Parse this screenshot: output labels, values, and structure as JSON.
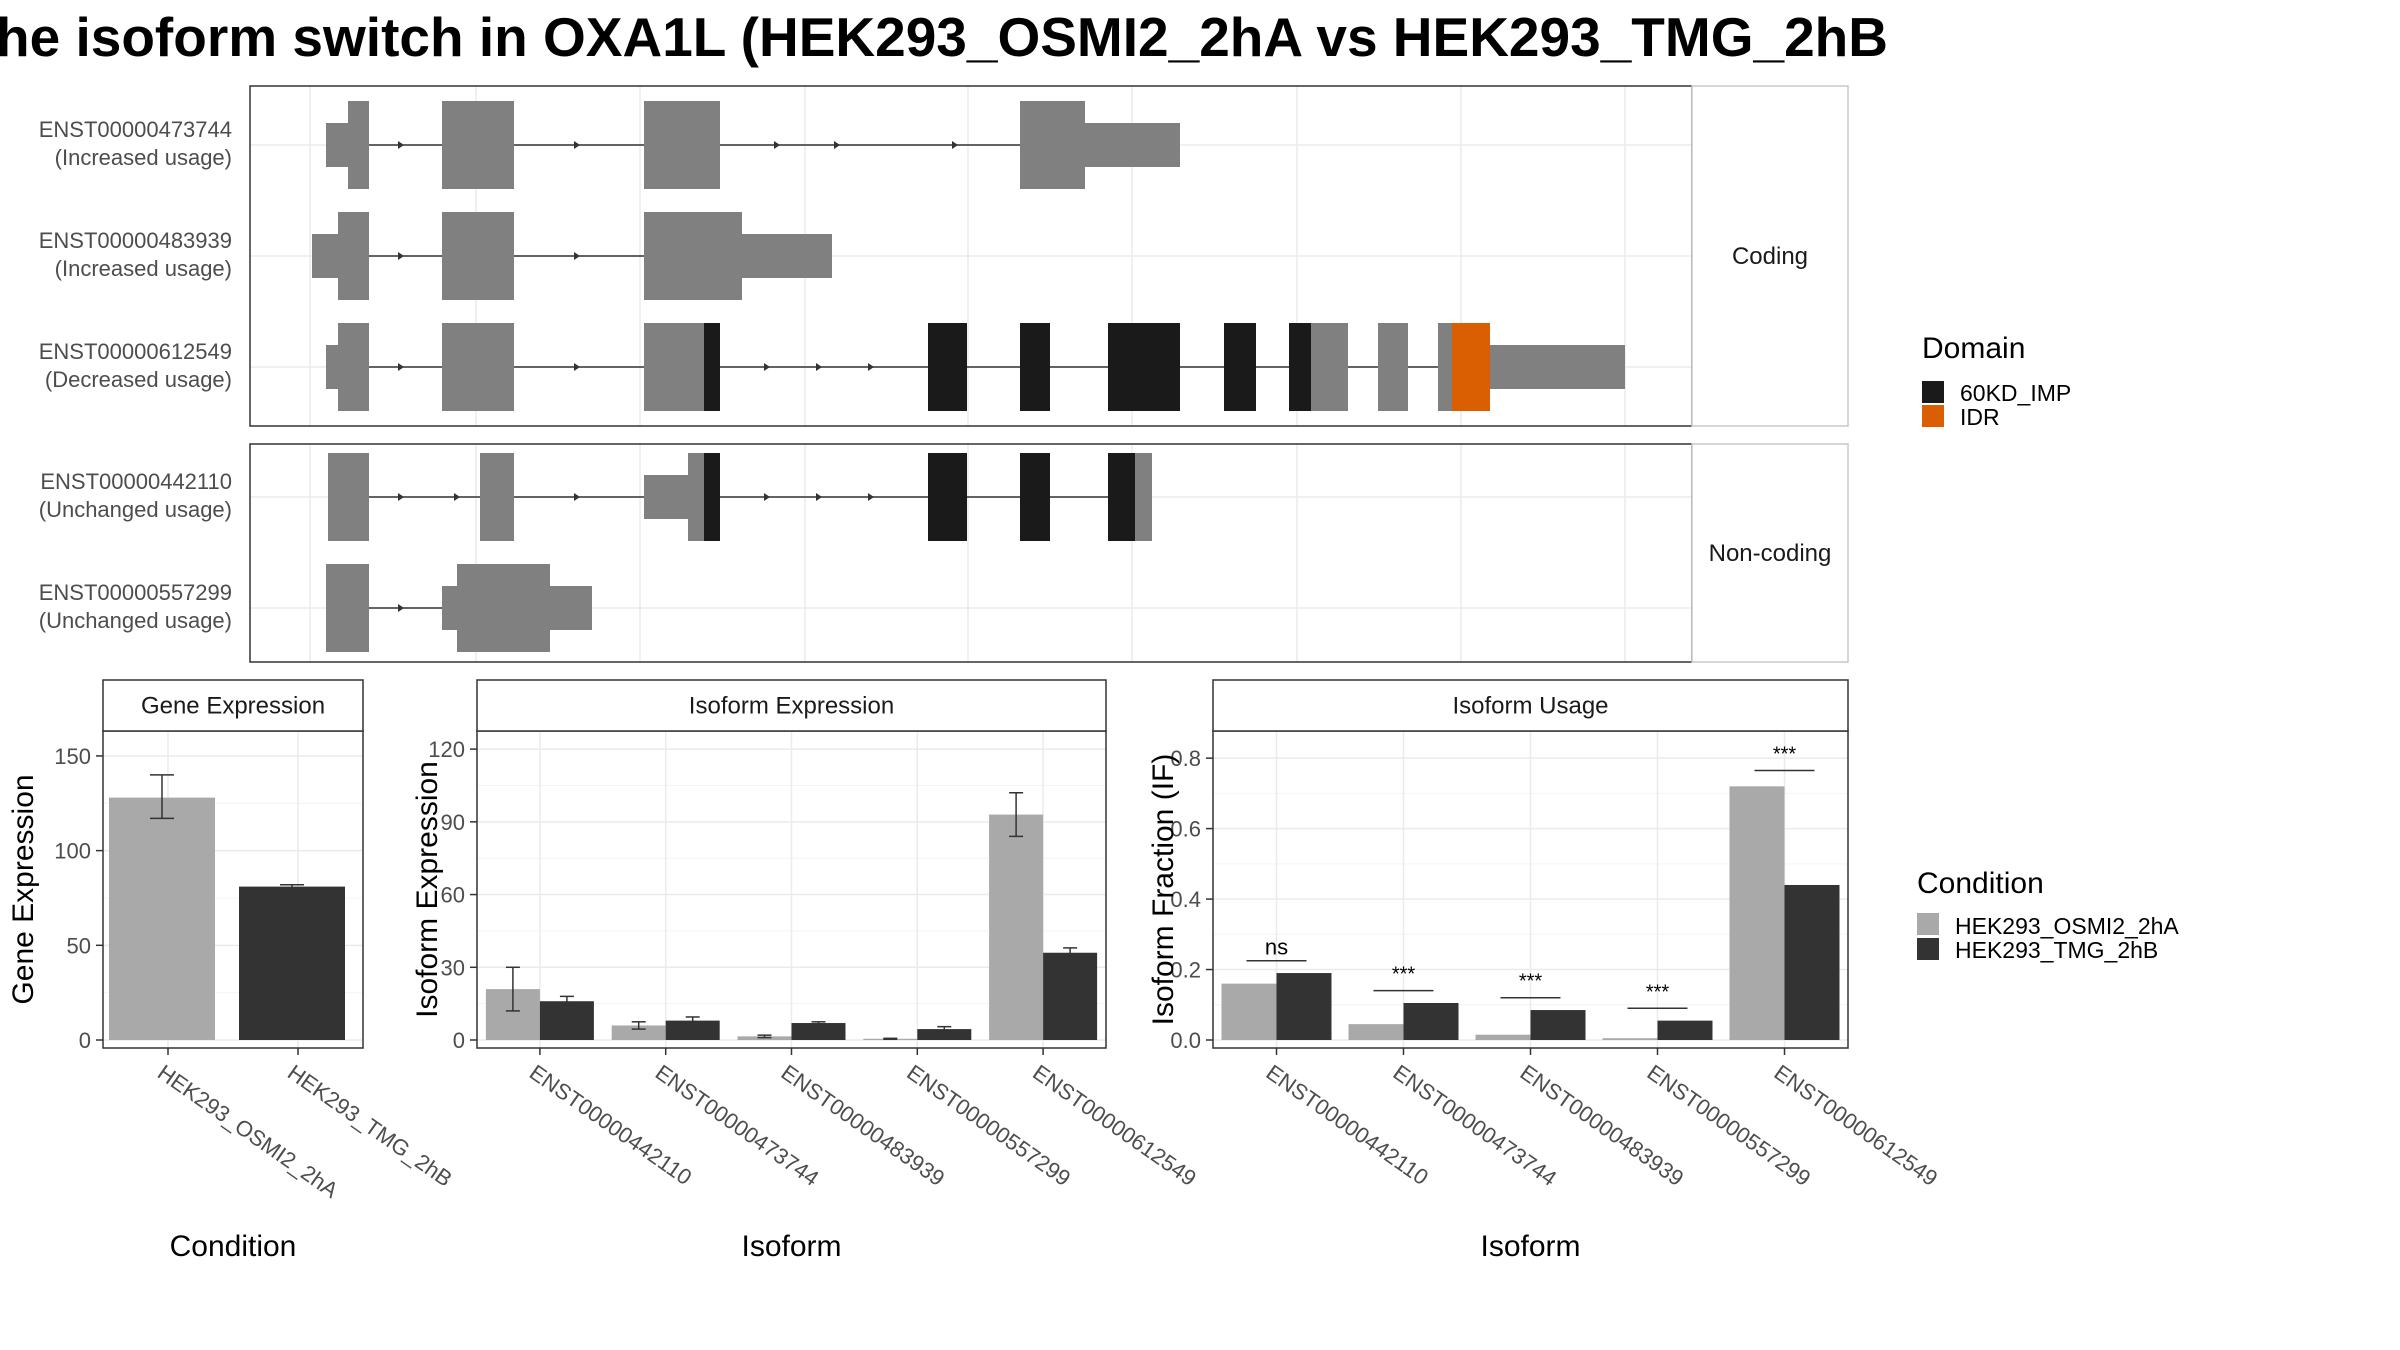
{
  "title": "he isoform switch in OXA1L (HEK293_OSMI2_2hA vs HEK293_TMG_2hB",
  "colors": {
    "exon": "#808080",
    "domain_60KD_IMP": "#1a1a1a",
    "domain_IDR": "#d95f02",
    "condition_A": "#a9a9a9",
    "condition_B": "#333333",
    "panel_border": "#333333",
    "strip_bg": "#ffffff",
    "grid": "#ebebeb"
  },
  "transcript_panel": {
    "groups": [
      {
        "label": "Coding",
        "transcripts": [
          {
            "id": "ENST00000473744",
            "usage": "(Increased usage)"
          },
          {
            "id": "ENST00000483939",
            "usage": "(Increased usage)"
          },
          {
            "id": "ENST00000612549",
            "usage": "(Decreased usage)"
          }
        ]
      },
      {
        "label": "Non-coding",
        "transcripts": [
          {
            "id": "ENST00000442110",
            "usage": "(Unchanged usage)"
          },
          {
            "id": "ENST00000557299",
            "usage": "(Unchanged usage)"
          }
        ]
      }
    ],
    "domain_legend": {
      "title": "Domain",
      "items": [
        {
          "name": "60KD_IMP",
          "color": "#1a1a1a"
        },
        {
          "name": "IDR",
          "color": "#d95f02"
        }
      ]
    }
  },
  "condition_legend": {
    "title": "Condition",
    "items": [
      {
        "name": "HEK293_OSMI2_2hA",
        "color": "#a9a9a9"
      },
      {
        "name": "HEK293_TMG_2hB",
        "color": "#333333"
      }
    ]
  },
  "chart_data": [
    {
      "type": "bar",
      "title": "Gene Expression",
      "xlabel": "Condition",
      "ylabel": "Gene Expression",
      "categories": [
        "HEK293_OSMI2_2hA",
        "HEK293_TMG_2hB"
      ],
      "values": [
        128,
        81
      ],
      "error_low": [
        117,
        80
      ],
      "error_high": [
        140,
        82
      ],
      "ylim": [
        0,
        160
      ],
      "yticks": [
        0,
        50,
        100,
        150
      ],
      "grid": true
    },
    {
      "type": "bar",
      "title": "Isoform Expression",
      "xlabel": "Isoform",
      "ylabel": "Isoform Expression",
      "categories": [
        "ENST00000442110",
        "ENST00000473744",
        "ENST00000483939",
        "ENST00000557299",
        "ENST00000612549"
      ],
      "series": [
        {
          "name": "HEK293_OSMI2_2hA",
          "values": [
            21,
            6,
            1.5,
            0.5,
            93
          ],
          "error_low": [
            12,
            4.5,
            1,
            0.3,
            84
          ],
          "error_high": [
            30,
            7.5,
            2,
            0.7,
            102
          ]
        },
        {
          "name": "HEK293_TMG_2hB",
          "values": [
            16,
            8,
            7,
            4.5,
            36
          ],
          "error_low": [
            14,
            6.5,
            6.5,
            3.5,
            34
          ],
          "error_high": [
            18,
            9.5,
            7.5,
            5.5,
            38
          ]
        }
      ],
      "ylim": [
        0,
        125
      ],
      "yticks": [
        0,
        30,
        60,
        90,
        120
      ],
      "grid": true
    },
    {
      "type": "bar",
      "title": "Isoform Usage",
      "xlabel": "Isoform",
      "ylabel": "Isoform Fraction (IF)",
      "categories": [
        "ENST00000442110",
        "ENST00000473744",
        "ENST00000483939",
        "ENST00000557299",
        "ENST00000612549"
      ],
      "series": [
        {
          "name": "HEK293_OSMI2_2hA",
          "values": [
            0.16,
            0.045,
            0.015,
            0.005,
            0.72
          ]
        },
        {
          "name": "HEK293_TMG_2hB",
          "values": [
            0.19,
            0.105,
            0.085,
            0.055,
            0.44
          ]
        }
      ],
      "significance": [
        "ns",
        "***",
        "***",
        "***",
        "***"
      ],
      "sig_y": [
        0.225,
        0.14,
        0.12,
        0.09,
        0.765
      ],
      "ylim": [
        0,
        0.86
      ],
      "yticks": [
        0.0,
        0.2,
        0.4,
        0.6,
        0.8
      ],
      "ytick_labels": [
        "0.0",
        "0.2",
        "0.4",
        "0.6",
        "0.8"
      ],
      "grid": true
    }
  ]
}
